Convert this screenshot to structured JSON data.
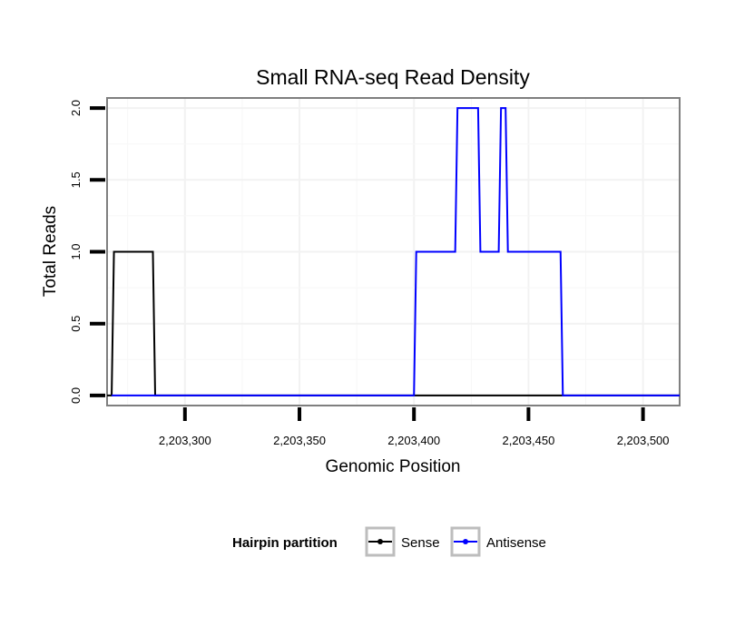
{
  "chart_data": {
    "type": "line",
    "title": "Small RNA-seq Read Density",
    "xlabel": "Genomic Position",
    "ylabel": "Total Reads",
    "xlim": [
      2203266,
      2203516
    ],
    "ylim": [
      -0.07,
      2.07
    ],
    "x_ticks": [
      2203300,
      2203350,
      2203400,
      2203450,
      2203500
    ],
    "x_tick_labels": [
      "2,203,300",
      "2,203,350",
      "2,203,400",
      "2,203,450",
      "2,203,500"
    ],
    "y_ticks": [
      0,
      0.5,
      1,
      1.5,
      2
    ],
    "y_tick_labels": [
      "0.0",
      "0.5",
      "1.0",
      "1.5",
      "2.0"
    ],
    "grid": true,
    "legend": {
      "title": "Hairpin partition",
      "placement": "bottom"
    },
    "series": [
      {
        "name": "Sense",
        "color": "#000000",
        "x": [
          2203266,
          2203268,
          2203269,
          2203286,
          2203287,
          2203516
        ],
        "y": [
          0,
          0,
          1,
          1,
          0,
          0
        ]
      },
      {
        "name": "Antisense",
        "color": "#0000ff",
        "x": [
          2203268,
          2203400,
          2203401,
          2203418,
          2203419,
          2203428,
          2203429,
          2203437,
          2203438,
          2203440,
          2203441,
          2203464,
          2203465,
          2203516
        ],
        "y": [
          0,
          0,
          1,
          1,
          2,
          2,
          1,
          1,
          2,
          2,
          1,
          1,
          0,
          0
        ]
      }
    ]
  }
}
